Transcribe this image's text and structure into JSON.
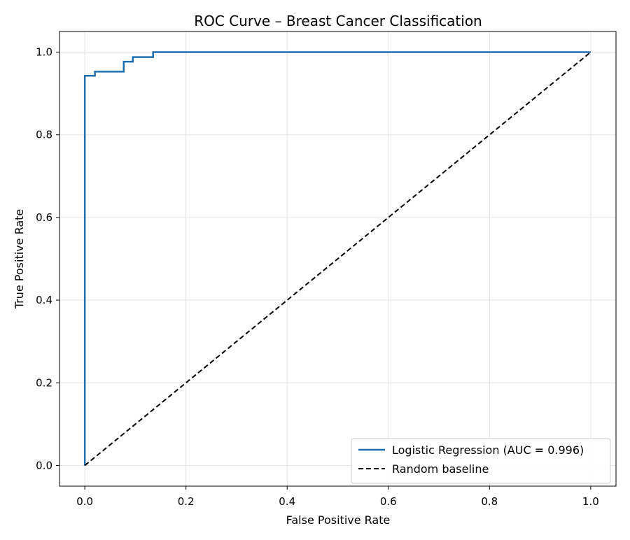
{
  "chart_data": {
    "type": "line",
    "title": "ROC Curve – Breast Cancer Classification",
    "xlabel": "False Positive Rate",
    "ylabel": "True Positive Rate",
    "xlim": [
      -0.05,
      1.05
    ],
    "ylim": [
      -0.05,
      1.05
    ],
    "xticks": [
      "0.0",
      "0.2",
      "0.4",
      "0.6",
      "0.8",
      "1.0"
    ],
    "yticks": [
      "0.0",
      "0.2",
      "0.4",
      "0.6",
      "0.8",
      "1.0"
    ],
    "grid": true,
    "legend_position": "lower-right",
    "series": [
      {
        "name": "Logistic Regression (AUC = 0.996)",
        "color": "#1f6fb0",
        "style": "solid",
        "x": [
          0.0,
          0.0,
          0.0,
          0.02,
          0.02,
          0.077,
          0.077,
          0.095,
          0.095,
          0.135,
          0.135,
          1.0
        ],
        "y": [
          0.0,
          0.943,
          0.943,
          0.943,
          0.953,
          0.953,
          0.977,
          0.977,
          0.988,
          0.988,
          1.0,
          1.0
        ]
      },
      {
        "name": "Random baseline",
        "color": "#000000",
        "style": "dashed",
        "x": [
          0.0,
          1.0
        ],
        "y": [
          0.0,
          1.0
        ]
      }
    ]
  }
}
